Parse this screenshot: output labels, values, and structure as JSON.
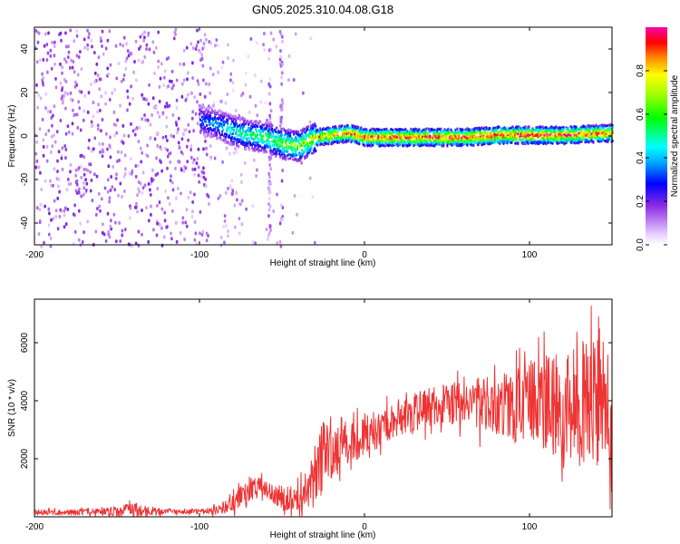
{
  "title": "GN05.2025.310.04.08.G18",
  "chart_data": [
    {
      "type": "heatmap",
      "xlabel": "Height of straight line (km)",
      "ylabel": "Frequency (Hz)",
      "xlim": [
        -200,
        150
      ],
      "ylim": [
        -50,
        50
      ],
      "xticks": [
        -200,
        -100,
        0,
        100
      ],
      "xtick_labels": [
        "-200",
        "-100",
        "0",
        "100"
      ],
      "yticks": [
        -40,
        -20,
        0,
        20,
        40
      ],
      "ytick_labels": [
        "-40",
        "-20",
        "0",
        "20",
        "40"
      ],
      "colorbar": {
        "label": "Normalized spectral amplitude",
        "range": [
          0,
          1
        ],
        "ticks": [
          0.0,
          0.2,
          0.4,
          0.6,
          0.8
        ],
        "tick_labels": [
          "0.0",
          "0.2",
          "0.4",
          "0.6",
          "0.8"
        ]
      },
      "ridge": {
        "description_points_x": [
          -100,
          -90,
          -80,
          -70,
          -60,
          -50,
          -40,
          -30,
          -20,
          -10,
          0,
          20,
          40,
          60,
          80,
          100,
          120,
          150
        ],
        "description_points_freq": [
          8,
          6,
          3,
          1,
          0,
          -3,
          -4,
          0,
          1,
          2,
          0,
          0,
          0,
          0,
          1,
          1,
          1,
          2
        ],
        "peak_amplitude": [
          0.35,
          0.4,
          0.5,
          0.55,
          0.6,
          0.65,
          0.7,
          0.8,
          0.85,
          0.9,
          0.95,
          0.95,
          0.95,
          0.95,
          0.95,
          0.95,
          0.95,
          0.9
        ]
      }
    },
    {
      "type": "line",
      "xlabel": "Height of straight line (km)",
      "ylabel": "SNR (10 * v/v)",
      "xlim": [
        -200,
        150
      ],
      "ylim": [
        0,
        7500
      ],
      "xticks": [
        -200,
        -100,
        0,
        100
      ],
      "xtick_labels": [
        "-200",
        "-100",
        "0",
        "100"
      ],
      "yticks": [
        2000,
        4000,
        6000
      ],
      "ytick_labels": [
        "2000",
        "4000",
        "6000"
      ],
      "color": "#ee3333",
      "envelope": {
        "x": [
          -200,
          -180,
          -160,
          -140,
          -120,
          -100,
          -90,
          -80,
          -70,
          -60,
          -50,
          -40,
          -30,
          -25,
          -20,
          -10,
          0,
          10,
          20,
          30,
          40,
          60,
          80,
          100,
          120,
          140,
          150
        ],
        "mean": [
          150,
          160,
          170,
          200,
          180,
          180,
          220,
          450,
          950,
          1000,
          600,
          700,
          1300,
          2100,
          2200,
          2500,
          2800,
          3100,
          3400,
          3600,
          3800,
          3950,
          3900,
          3950,
          3900,
          3850,
          3800
        ],
        "peak": [
          300,
          320,
          350,
          600,
          300,
          300,
          450,
          900,
          1600,
          1500,
          1200,
          1400,
          2800,
          4100,
          3700,
          3800,
          4000,
          4200,
          4400,
          4600,
          4800,
          5100,
          5500,
          6200,
          6800,
          7500,
          7000
        ]
      }
    }
  ]
}
